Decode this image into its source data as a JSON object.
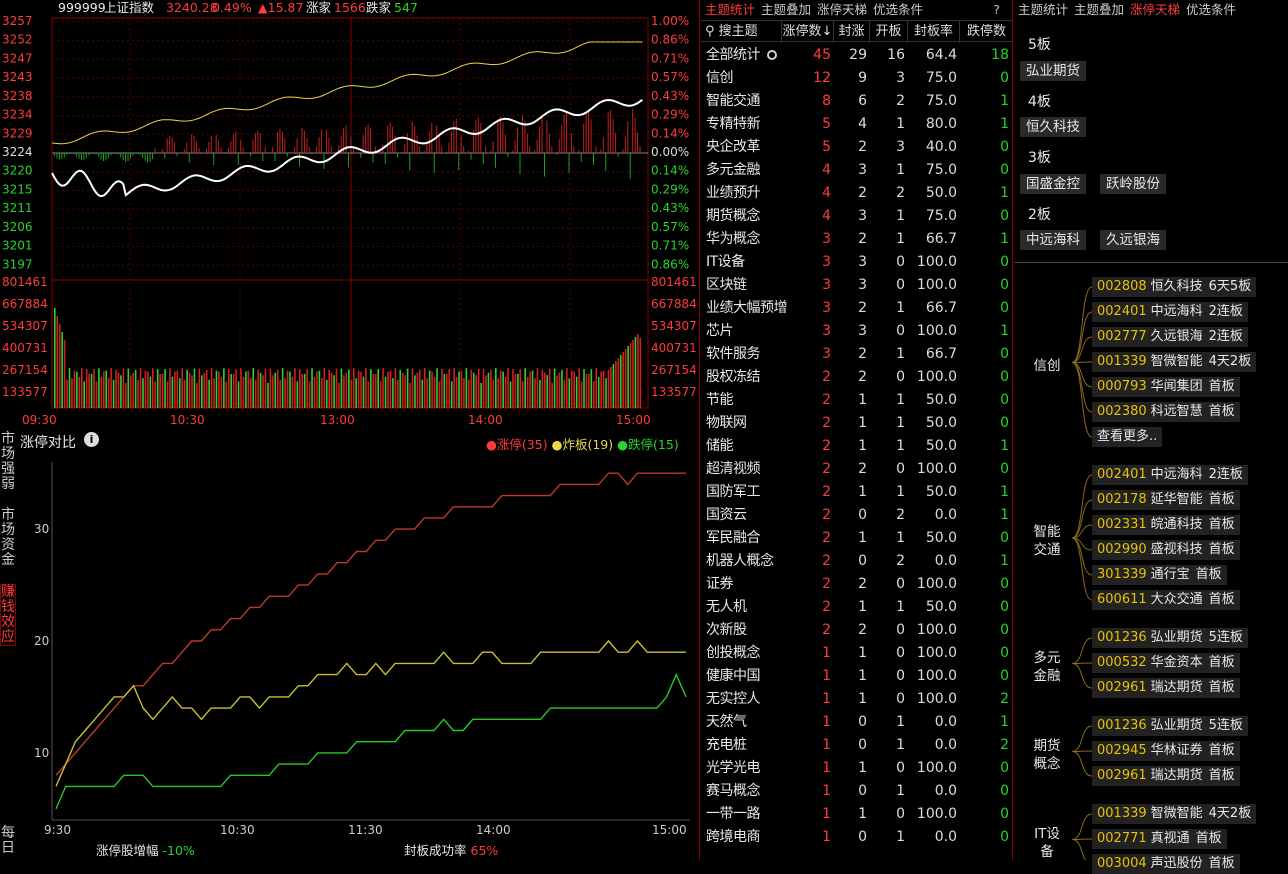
{
  "index": {
    "code": "999999",
    "name": "上证指数",
    "price": "3240.28",
    "pct": "0.49%",
    "chg": "▲15.87",
    "up_label": "涨家",
    "up": "1566",
    "down_label": "跌家",
    "down": "547",
    "yticks": [
      "3257",
      "3252",
      "3247",
      "3243",
      "3238",
      "3234",
      "3229",
      "3224",
      "3220",
      "3215",
      "3211",
      "3206",
      "3201",
      "3197"
    ],
    "pticks": [
      "1.00%",
      "0.86%",
      "0.71%",
      "0.57%",
      "0.43%",
      "0.29%",
      "0.14%",
      "0.00%",
      "0.14%",
      "0.29%",
      "0.43%",
      "0.57%",
      "0.71%",
      "0.86%"
    ],
    "vticks": [
      "801461",
      "667884",
      "534307",
      "400731",
      "267154",
      "133577"
    ],
    "xticks": [
      "09:30",
      "10:30",
      "13:00",
      "14:00",
      "15:00"
    ]
  },
  "limit_chart": {
    "title": "涨停对比",
    "legend": [
      "●涨停(35)",
      "●炸板(19)",
      "●跌停(15)"
    ],
    "yticks": [
      "30",
      "20",
      "10"
    ],
    "xticks": [
      "9:30",
      "10:30",
      "11:30",
      "14:00",
      "15:00"
    ],
    "footer1_label": "涨停股增幅",
    "footer1_value": "-10%",
    "footer2_label": "封板成功率",
    "footer2_value": "65%"
  },
  "side_tabs": [
    {
      "text": "市场强弱",
      "active": false
    },
    {
      "text": "市场资金",
      "active": false
    },
    {
      "text": "赚钱效应",
      "active": true
    }
  ],
  "side_tab_bottom": "每日",
  "chart_data": {
    "type": "line",
    "series": [
      {
        "name": "涨停",
        "color": "#c0392b",
        "values": [
          8,
          9,
          10,
          11,
          12,
          13,
          14,
          15,
          16,
          16,
          17,
          18,
          18,
          19,
          20,
          20,
          21,
          21,
          22,
          22,
          23,
          23,
          24,
          24,
          24,
          25,
          25,
          26,
          26,
          27,
          27,
          28,
          28,
          29,
          29,
          30,
          30,
          30,
          31,
          31,
          31,
          32,
          32,
          32,
          32,
          32,
          33,
          33,
          33,
          33,
          33,
          33,
          34,
          34,
          34,
          34,
          34,
          35,
          35,
          34,
          35,
          35,
          35,
          35,
          35,
          35
        ]
      },
      {
        "name": "炸板",
        "color": "#c8c032",
        "values": [
          7,
          9,
          11,
          12,
          13,
          14,
          15,
          15,
          16,
          14,
          13,
          14,
          15,
          14,
          14,
          13,
          14,
          14,
          14,
          15,
          15,
          14,
          15,
          15,
          15,
          16,
          16,
          17,
          17,
          17,
          18,
          17,
          17,
          18,
          17,
          18,
          18,
          18,
          18,
          18,
          19,
          18,
          18,
          18,
          19,
          19,
          18,
          18,
          18,
          18,
          19,
          19,
          19,
          19,
          19,
          19,
          19,
          20,
          19,
          19,
          20,
          19,
          19,
          19,
          19,
          19
        ]
      },
      {
        "name": "跌停",
        "color": "#28c828",
        "values": [
          5,
          7,
          7,
          7,
          7,
          7,
          7,
          8,
          8,
          8,
          7,
          7,
          7,
          7,
          7,
          7,
          7,
          7,
          8,
          8,
          8,
          8,
          8,
          9,
          9,
          9,
          9,
          10,
          10,
          10,
          10,
          11,
          11,
          11,
          11,
          11,
          12,
          12,
          12,
          12,
          13,
          12,
          12,
          13,
          13,
          13,
          13,
          13,
          13,
          13,
          13,
          14,
          14,
          14,
          14,
          14,
          14,
          14,
          14,
          14,
          14,
          14,
          14,
          15,
          17,
          15
        ]
      }
    ],
    "ylim": [
      4,
      36
    ]
  },
  "theme_tabs": [
    "主题统计",
    "主题叠加",
    "涨停天梯",
    "优选条件",
    "?"
  ],
  "theme_table": {
    "search": "搜主题",
    "headers": [
      "涨停数↓",
      "封涨",
      "开板",
      "封板率",
      "跌停数"
    ],
    "rows": [
      [
        "全部统计",
        "45",
        "29",
        "16",
        "64.4",
        "18"
      ],
      [
        "信创",
        "12",
        "9",
        "3",
        "75.0",
        "0"
      ],
      [
        "智能交通",
        "8",
        "6",
        "2",
        "75.0",
        "1"
      ],
      [
        "专精特新",
        "5",
        "4",
        "1",
        "80.0",
        "1"
      ],
      [
        "央企改革",
        "5",
        "2",
        "3",
        "40.0",
        "0"
      ],
      [
        "多元金融",
        "4",
        "3",
        "1",
        "75.0",
        "0"
      ],
      [
        "业绩预升",
        "4",
        "2",
        "2",
        "50.0",
        "1"
      ],
      [
        "期货概念",
        "4",
        "3",
        "1",
        "75.0",
        "0"
      ],
      [
        "华为概念",
        "3",
        "2",
        "1",
        "66.7",
        "1"
      ],
      [
        "IT设备",
        "3",
        "3",
        "0",
        "100.0",
        "0"
      ],
      [
        "区块链",
        "3",
        "3",
        "0",
        "100.0",
        "0"
      ],
      [
        "业绩大幅预增",
        "3",
        "2",
        "1",
        "66.7",
        "0"
      ],
      [
        "芯片",
        "3",
        "3",
        "0",
        "100.0",
        "1"
      ],
      [
        "软件服务",
        "3",
        "2",
        "1",
        "66.7",
        "0"
      ],
      [
        "股权冻结",
        "2",
        "2",
        "0",
        "100.0",
        "0"
      ],
      [
        "节能",
        "2",
        "1",
        "1",
        "50.0",
        "0"
      ],
      [
        "物联网",
        "2",
        "1",
        "1",
        "50.0",
        "0"
      ],
      [
        "储能",
        "2",
        "1",
        "1",
        "50.0",
        "1"
      ],
      [
        "超清视频",
        "2",
        "2",
        "0",
        "100.0",
        "0"
      ],
      [
        "国防军工",
        "2",
        "1",
        "1",
        "50.0",
        "1"
      ],
      [
        "国资云",
        "2",
        "0",
        "2",
        "0.0",
        "1"
      ],
      [
        "军民融合",
        "2",
        "1",
        "1",
        "50.0",
        "0"
      ],
      [
        "机器人概念",
        "2",
        "0",
        "2",
        "0.0",
        "1"
      ],
      [
        "证券",
        "2",
        "2",
        "0",
        "100.0",
        "0"
      ],
      [
        "无人机",
        "2",
        "1",
        "1",
        "50.0",
        "0"
      ],
      [
        "次新股",
        "2",
        "2",
        "0",
        "100.0",
        "0"
      ],
      [
        "创投概念",
        "1",
        "1",
        "0",
        "100.0",
        "0"
      ],
      [
        "健康中国",
        "1",
        "1",
        "0",
        "100.0",
        "0"
      ],
      [
        "无实控人",
        "1",
        "1",
        "0",
        "100.0",
        "2"
      ],
      [
        "天然气",
        "1",
        "0",
        "1",
        "0.0",
        "1"
      ],
      [
        "充电桩",
        "1",
        "0",
        "1",
        "0.0",
        "2"
      ],
      [
        "光学光电",
        "1",
        "1",
        "0",
        "100.0",
        "0"
      ],
      [
        "赛马概念",
        "1",
        "0",
        "1",
        "0.0",
        "0"
      ],
      [
        "一带一路",
        "1",
        "1",
        "0",
        "100.0",
        "0"
      ],
      [
        "跨境电商",
        "1",
        "0",
        "1",
        "0.0",
        "0"
      ]
    ]
  },
  "ladder_tabs": [
    "主题统计",
    "主题叠加",
    "涨停天梯",
    "优选条件"
  ],
  "ladder": [
    {
      "level": "5板",
      "stocks": [
        "弘业期货"
      ]
    },
    {
      "level": "4板",
      "stocks": [
        "恒久科技"
      ]
    },
    {
      "level": "3板",
      "stocks": [
        "国盛金控",
        "跃岭股份"
      ]
    },
    {
      "level": "2板",
      "stocks": [
        "中远海科",
        "久远银海"
      ]
    }
  ],
  "tree": [
    {
      "cat": "信创",
      "items": [
        [
          "002808",
          "恒久科技",
          "6天5板"
        ],
        [
          "002401",
          "中远海科",
          "2连板"
        ],
        [
          "002777",
          "久远银海",
          "2连板"
        ],
        [
          "001339",
          "智微智能",
          "4天2板"
        ],
        [
          "000793",
          "华闻集团",
          "首板"
        ],
        [
          "002380",
          "科远智慧",
          "首板"
        ]
      ],
      "more": "查看更多.."
    },
    {
      "cat": "智能交通",
      "items": [
        [
          "002401",
          "中远海科",
          "2连板"
        ],
        [
          "002178",
          "延华智能",
          "首板"
        ],
        [
          "002331",
          "皖通科技",
          "首板"
        ],
        [
          "002990",
          "盛视科技",
          "首板"
        ],
        [
          "301339",
          "通行宝",
          "首板"
        ],
        [
          "600611",
          "大众交通",
          "首板"
        ]
      ]
    },
    {
      "cat": "多元金融",
      "items": [
        [
          "001236",
          "弘业期货",
          "5连板"
        ],
        [
          "000532",
          "华金资本",
          "首板"
        ],
        [
          "002961",
          "瑞达期货",
          "首板"
        ]
      ]
    },
    {
      "cat": "期货概念",
      "items": [
        [
          "001236",
          "弘业期货",
          "5连板"
        ],
        [
          "002945",
          "华林证券",
          "首板"
        ],
        [
          "002961",
          "瑞达期货",
          "首板"
        ]
      ]
    },
    {
      "cat": "IT设备",
      "items": [
        [
          "001339",
          "智微智能",
          "4天2板"
        ],
        [
          "002771",
          "真视通",
          "首板"
        ],
        [
          "003004",
          "声迅股份",
          "首板"
        ]
      ]
    }
  ]
}
